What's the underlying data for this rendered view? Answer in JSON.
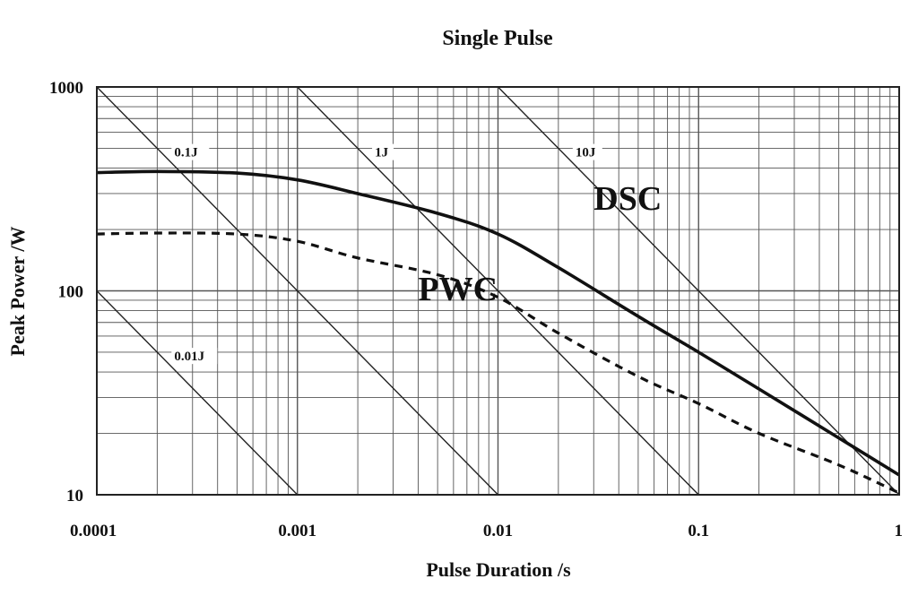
{
  "chart_data": {
    "type": "line",
    "title": "Single Pulse",
    "xlabel": "Pulse Duration /s",
    "ylabel": "Peak Power /W",
    "xscale": "log",
    "yscale": "log",
    "xlim": [
      0.0001,
      1
    ],
    "ylim": [
      10,
      1000
    ],
    "xticks": [
      "0.0001",
      "0.001",
      "0.01",
      "0.1",
      "1"
    ],
    "yticks": [
      "10",
      "100",
      "1000"
    ],
    "grid": true,
    "series": [
      {
        "name": "DSC",
        "style": "solid",
        "x": [
          0.0001,
          0.0002,
          0.0005,
          0.001,
          0.002,
          0.005,
          0.01,
          0.02,
          0.05,
          0.1,
          0.2,
          0.5,
          1
        ],
        "y": [
          380,
          385,
          378,
          350,
          300,
          240,
          190,
          130,
          75,
          50,
          33,
          19,
          12.5
        ]
      },
      {
        "name": "PWC",
        "style": "dashed",
        "x": [
          0.0001,
          0.0002,
          0.0005,
          0.001,
          0.002,
          0.005,
          0.01,
          0.02,
          0.05,
          0.1,
          0.2,
          0.5,
          1
        ],
        "y": [
          190,
          192,
          190,
          175,
          145,
          120,
          93,
          62,
          38,
          28,
          20,
          14,
          10.2
        ]
      }
    ],
    "reference_lines": [
      {
        "label": "0.01J",
        "energy": 0.01
      },
      {
        "label": "0.1J",
        "energy": 0.1
      },
      {
        "label": "1J",
        "energy": 1
      },
      {
        "label": "10J",
        "energy": 10
      }
    ]
  }
}
